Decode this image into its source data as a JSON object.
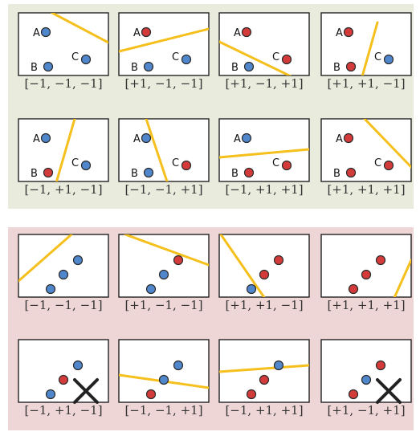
{
  "colors": {
    "shattered_bg": "#e9ebdd",
    "not_shattered_bg": "#efd6d6",
    "frame_border": "#222222",
    "frame_fill": "#ffffff",
    "point_blue": "#4f86cc",
    "point_red": "#d33b3b",
    "point_edge": "#2a2a2a",
    "line": "#f5bf1c",
    "cross": "#222222"
  },
  "shattered": {
    "panels": [
      {
        "caption": "[−1,  −1,  −1]",
        "points": [
          {
            "label": "A",
            "color": "blue"
          },
          {
            "label": "B",
            "color": "blue"
          },
          {
            "label": "C",
            "color": "blue"
          }
        ]
      },
      {
        "caption": "[+1,  −1,  −1]",
        "points": [
          {
            "label": "A",
            "color": "red"
          },
          {
            "label": "B",
            "color": "blue"
          },
          {
            "label": "C",
            "color": "blue"
          }
        ]
      },
      {
        "caption": "[+1,  −1,  +1]",
        "points": [
          {
            "label": "A",
            "color": "red"
          },
          {
            "label": "B",
            "color": "blue"
          },
          {
            "label": "C",
            "color": "red"
          }
        ]
      },
      {
        "caption": "[+1,  +1,  −1]",
        "points": [
          {
            "label": "A",
            "color": "red"
          },
          {
            "label": "B",
            "color": "red"
          },
          {
            "label": "C",
            "color": "blue"
          }
        ]
      },
      {
        "caption": "[−1,  +1,  −1]",
        "points": [
          {
            "label": "A",
            "color": "blue"
          },
          {
            "label": "B",
            "color": "red"
          },
          {
            "label": "C",
            "color": "blue"
          }
        ]
      },
      {
        "caption": "[−1,  −1,  +1]",
        "points": [
          {
            "label": "A",
            "color": "blue"
          },
          {
            "label": "B",
            "color": "blue"
          },
          {
            "label": "C",
            "color": "red"
          }
        ]
      },
      {
        "caption": "[−1,  +1,  +1]",
        "points": [
          {
            "label": "A",
            "color": "blue"
          },
          {
            "label": "B",
            "color": "red"
          },
          {
            "label": "C",
            "color": "red"
          }
        ]
      },
      {
        "caption": "[+1,  +1,  +1]",
        "points": [
          {
            "label": "A",
            "color": "red"
          },
          {
            "label": "B",
            "color": "red"
          },
          {
            "label": "C",
            "color": "red"
          }
        ]
      }
    ]
  },
  "not_shattered": {
    "panels": [
      {
        "caption": "[−1,  −1,  −1]",
        "points": [
          "blue",
          "blue",
          "blue"
        ],
        "crossed": false
      },
      {
        "caption": "[+1,  −1,  −1]",
        "points": [
          "red",
          "blue",
          "blue"
        ],
        "crossed": false
      },
      {
        "caption": "[+1,  +1,  −1]",
        "points": [
          "red",
          "red",
          "blue"
        ],
        "crossed": false
      },
      {
        "caption": "[+1,  +1,  +1]",
        "points": [
          "red",
          "red",
          "red"
        ],
        "crossed": false
      },
      {
        "caption": "[−1,  +1,  −1]",
        "points": [
          "blue",
          "red",
          "blue"
        ],
        "crossed": true
      },
      {
        "caption": "[−1,  −1,  +1]",
        "points": [
          "blue",
          "blue",
          "red"
        ],
        "crossed": false
      },
      {
        "caption": "[−1,  +1,  +1]",
        "points": [
          "blue",
          "red",
          "red"
        ],
        "crossed": false
      },
      {
        "caption": "[+1,  −1,  +1]",
        "points": [
          "red",
          "blue",
          "red"
        ],
        "crossed": true
      }
    ]
  }
}
